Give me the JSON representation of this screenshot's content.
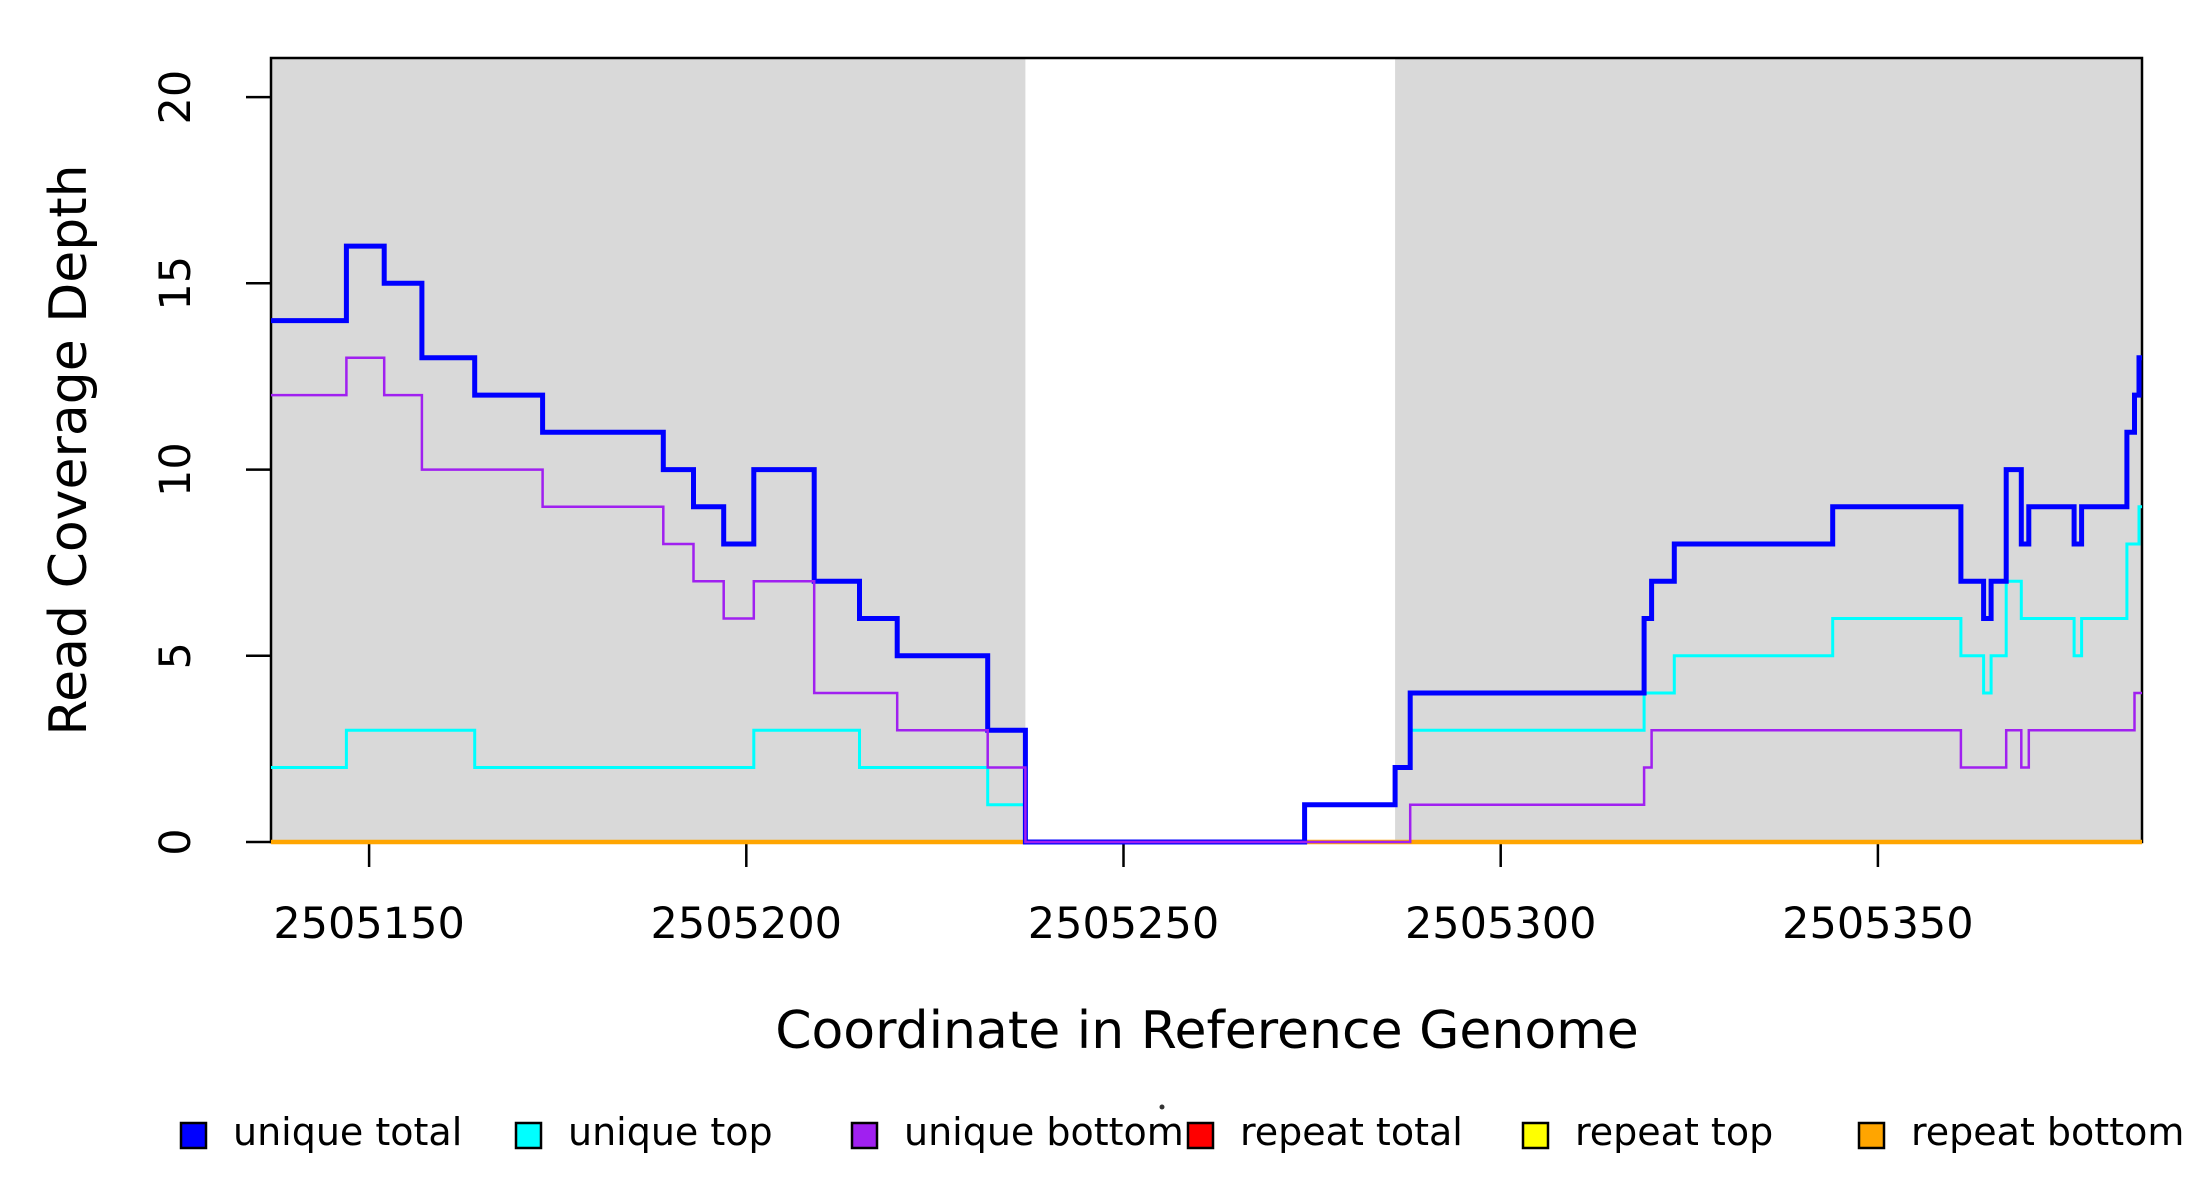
{
  "chart_data": {
    "type": "line",
    "subtype": "step-coverage-plot",
    "title": "",
    "xlabel": "Coordinate in Reference Genome",
    "ylabel": "Read Coverage Depth",
    "xlim": [
      2505137,
      2505385
    ],
    "ylim": [
      0,
      21.05
    ],
    "x_ticks": [
      2505150,
      2505200,
      2505250,
      2505300,
      2505350
    ],
    "x_tick_labels": [
      "2505150",
      "2505200",
      "2505250",
      "2505300",
      "2505350"
    ],
    "y_ticks": [
      0,
      5,
      10,
      15,
      20
    ],
    "y_tick_labels": [
      "0",
      "5",
      "10",
      "15",
      "20"
    ],
    "grid": false,
    "plot_background": "#FFFFFF",
    "shaded_region_color": "#D9D9D9",
    "shaded_regions": [
      [
        2505137,
        2505237
      ],
      [
        2505286,
        2505385
      ]
    ],
    "uncovered_gap_region": [
      2505237,
      2505286
    ],
    "draw_order": [
      "repeat total",
      "repeat top",
      "repeat bottom",
      "unique top",
      "unique total",
      "unique bottom"
    ],
    "series": [
      {
        "name": "unique total",
        "color": "#0000FF",
        "line_width": 5,
        "points": [
          [
            2505137,
            14
          ],
          [
            2505147,
            16
          ],
          [
            2505152,
            15
          ],
          [
            2505157,
            13
          ],
          [
            2505164,
            12
          ],
          [
            2505173,
            11
          ],
          [
            2505189,
            10
          ],
          [
            2505193,
            9
          ],
          [
            2505197,
            8
          ],
          [
            2505201,
            10
          ],
          [
            2505209,
            7
          ],
          [
            2505215,
            6
          ],
          [
            2505220,
            5
          ],
          [
            2505232,
            3
          ],
          [
            2505237,
            0
          ],
          [
            2505274,
            1
          ],
          [
            2505286,
            2
          ],
          [
            2505288,
            4
          ],
          [
            2505319,
            6
          ],
          [
            2505320,
            7
          ],
          [
            2505323,
            8
          ],
          [
            2505344,
            9
          ],
          [
            2505361,
            7
          ],
          [
            2505364,
            6
          ],
          [
            2505365,
            7
          ],
          [
            2505367,
            10
          ],
          [
            2505369,
            8
          ],
          [
            2505370,
            9
          ],
          [
            2505376,
            8
          ],
          [
            2505377,
            9
          ],
          [
            2505383,
            11
          ],
          [
            2505384,
            12
          ],
          [
            2505384.6,
            13
          ]
        ]
      },
      {
        "name": "unique top",
        "color": "#00FFFF",
        "line_width": 3,
        "points": [
          [
            2505137,
            2
          ],
          [
            2505147,
            3
          ],
          [
            2505164,
            2
          ],
          [
            2505201,
            3
          ],
          [
            2505215,
            2
          ],
          [
            2505232,
            1
          ],
          [
            2505237,
            0
          ],
          [
            2505274,
            1
          ],
          [
            2505286,
            2
          ],
          [
            2505288,
            3
          ],
          [
            2505319,
            4
          ],
          [
            2505323,
            5
          ],
          [
            2505344,
            6
          ],
          [
            2505361,
            5
          ],
          [
            2505364,
            4
          ],
          [
            2505365,
            5
          ],
          [
            2505367,
            7
          ],
          [
            2505369,
            6
          ],
          [
            2505376,
            5
          ],
          [
            2505377,
            6
          ],
          [
            2505383,
            8
          ],
          [
            2505384.6,
            9
          ]
        ]
      },
      {
        "name": "unique bottom",
        "color": "#A020F0",
        "line_width": 2.5,
        "points": [
          [
            2505137,
            12
          ],
          [
            2505147,
            13
          ],
          [
            2505152,
            12
          ],
          [
            2505157,
            10
          ],
          [
            2505173,
            9
          ],
          [
            2505189,
            8
          ],
          [
            2505193,
            7
          ],
          [
            2505197,
            6
          ],
          [
            2505201,
            7
          ],
          [
            2505209,
            4
          ],
          [
            2505220,
            3
          ],
          [
            2505232,
            2
          ],
          [
            2505237,
            0
          ],
          [
            2505288,
            1
          ],
          [
            2505319,
            2
          ],
          [
            2505320,
            3
          ],
          [
            2505361,
            2
          ],
          [
            2505367,
            3
          ],
          [
            2505369,
            2
          ],
          [
            2505370,
            3
          ],
          [
            2505384,
            4
          ]
        ]
      },
      {
        "name": "repeat total",
        "color": "#FF0000",
        "line_width": 3,
        "points": [
          [
            2505137,
            0
          ]
        ]
      },
      {
        "name": "repeat top",
        "color": "#FFFF00",
        "line_width": 3,
        "points": [
          [
            2505137,
            0
          ]
        ]
      },
      {
        "name": "repeat bottom",
        "color": "#FFA500",
        "line_width": 4.5,
        "points": [
          [
            2505137,
            0
          ]
        ]
      }
    ],
    "legend": {
      "position": "bottom",
      "items": [
        {
          "label": "unique total",
          "color": "#0000FF"
        },
        {
          "label": "unique top",
          "color": "#00FFFF"
        },
        {
          "label": "unique bottom",
          "color": "#A020F0"
        },
        {
          "label": "repeat total",
          "color": "#FF0000"
        },
        {
          "label": "repeat top",
          "color": "#FFFF00"
        },
        {
          "label": "repeat bottom",
          "color": "#FFA500"
        }
      ],
      "artifact_dot": {
        "present": true,
        "x": 1162,
        "y": 1107
      }
    }
  }
}
